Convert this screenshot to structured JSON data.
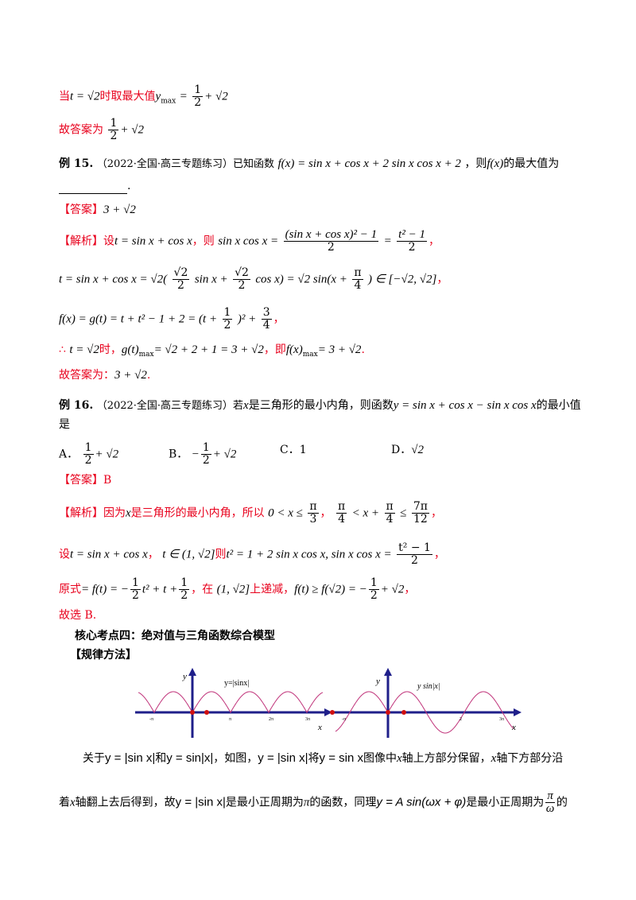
{
  "lines": {
    "l1_prefix": "当",
    "l1_t": "t = √2",
    "l1_mid": "时取最大值",
    "l1_expr": "y",
    "l1_sub": "max",
    "l1_eq": "=",
    "l1_num": "1",
    "l1_den": "2",
    "l1_rest": "+ √2",
    "l2_text": "故答案为",
    "l2_num": "1",
    "l2_den": "2",
    "l2_rest": "+ √2",
    "ex15_label": "例 15.",
    "ex15_source": "（2022·全国·高三专题练习）已知函数",
    "ex15_func": "f(x) = sin x + cos x + 2 sin x cos x + 2",
    "ex15_tail": "，则",
    "ex15_fx": "f(x)",
    "ex15_tail2": "的最大值为",
    "ex15_end": ".",
    "ans15_label": "【答案】",
    "ans15_value": "3 + √2",
    "sol15_label": "【解析】设",
    "sol15_t": "t = sin x + cos x",
    "sol15_then": "，则",
    "sol15_lhs": "sin x cos x =",
    "sol15_num1": "(sin x + cos x)² − 1",
    "sol15_den1": "2",
    "sol15_eq": "=",
    "sol15_num2": "t² − 1",
    "sol15_den2": "2",
    "sol15_comma": "，",
    "sol15_line2": "t = sin x + cos x = √2(",
    "sol15_l2_n1": "√2",
    "sol15_l2_d1": "2",
    "sol15_l2_m1": "sin x +",
    "sol15_l2_n2": "√2",
    "sol15_l2_d2": "2",
    "sol15_l2_m2": "cos x) = √2 sin(x +",
    "sol15_l2_n3": "π",
    "sol15_l2_d3": "4",
    "sol15_l2_end": ") ∈ [−√2, √2]",
    "sol15_line3a": "f(x) = g(t) = t + t² − 1 + 2 = (t +",
    "sol15_l3_n1": "1",
    "sol15_l3_d1": "2",
    "sol15_l3_m": ")² +",
    "sol15_l3_n2": "3",
    "sol15_l3_d2": "4",
    "sol15_l3_end": "，",
    "sol15_line4a": "∴",
    "sol15_line4b": "t = √2",
    "sol15_line4c": "时，",
    "sol15_line4d": "g(t)",
    "sol15_line4sub": "max",
    "sol15_line4e": "= √2 + 2 + 1 = 3 + √2",
    "sol15_line4f": "，即",
    "sol15_line4g": "f(x)",
    "sol15_line4sub2": "max",
    "sol15_line4h": "= 3 + √2",
    "sol15_line4i": ".",
    "sol15_final": "故答案为：",
    "sol15_final_val": "3 + √2",
    "sol15_final_end": ".",
    "ex16_label": "例 16.",
    "ex16_source": "（2022·全国·高三专题练习）若",
    "ex16_x": "x",
    "ex16_mid": "是三角形的最小内角，则函数",
    "ex16_func": "y = sin x + cos x − sin x cos x",
    "ex16_tail": "的最小值",
    "ex16_line2": "是",
    "optA_label": "A．",
    "optA_num": "1",
    "optA_den": "2",
    "optA_rest": "+ √2",
    "optB_label": "B．",
    "optB_pre": "−",
    "optB_num": "1",
    "optB_den": "2",
    "optB_rest": "+ √2",
    "optC_label": "C．",
    "optC_val": "1",
    "optD_label": "D．",
    "optD_val": "√2",
    "ans16_label": "【答案】",
    "ans16_value": "B",
    "sol16_label": "【解析】因为",
    "sol16_x": "x",
    "sol16_mid": "是三角形的最小内角，所以",
    "sol16_ineq1a": "0 < x ≤",
    "sol16_i1_num": "π",
    "sol16_i1_den": "3",
    "sol16_sep": "，",
    "sol16_i2_n1": "π",
    "sol16_i2_d1": "4",
    "sol16_i2_m": "< x +",
    "sol16_i2_n2": "π",
    "sol16_i2_d2": "4",
    "sol16_i2_le": "≤",
    "sol16_i2_n3": "7π",
    "sol16_i2_d3": "12",
    "sol16_i2_end": "，",
    "sol16_l2_pre": "设",
    "sol16_l2_t": "t = sin x + cos x",
    "sol16_l2_c": "，",
    "sol16_l2_in": "t ∈ (1, √2]",
    "sol16_l2_then": "则",
    "sol16_l2_eq": "t² = 1 + 2 sin x cos x, sin x cos x =",
    "sol16_l2_num": "t² − 1",
    "sol16_l2_den": "2",
    "sol16_l2_end": "，",
    "sol16_l3_pre": "原式",
    "sol16_l3_a": "= f(t) = −",
    "sol16_l3_n1": "1",
    "sol16_l3_d1": "2",
    "sol16_l3_b": "t² + t +",
    "sol16_l3_n2": "1",
    "sol16_l3_d2": "2",
    "sol16_l3_c": "，在",
    "sol16_l3_int": "(1, √2]",
    "sol16_l3_d": "上递减，",
    "sol16_l3_e": "f(t) ≥ f(√2) = −",
    "sol16_l3_n3": "1",
    "sol16_l3_d3": "2",
    "sol16_l3_f": "+ √2",
    "sol16_l3_g": "，",
    "sol16_final": "故选 B.",
    "section_title": "核心考点四：绝对值与三角函数综合模型",
    "method_label": "【规律方法】",
    "p1_a": "关于",
    "p1_b": "y = |sin x|",
    "p1_c": "和",
    "p1_d": "y = sin|x|",
    "p1_e": "，如图，",
    "p1_f": "y = |sin x|",
    "p1_g": "将",
    "p1_h": "y = sin x",
    "p1_i": "图像中",
    "p1_j": "x",
    "p1_k": "轴上方部分保留，",
    "p1_l": "x",
    "p1_m": "轴下方部分沿",
    "p2_a": "着",
    "p2_b": "x",
    "p2_c": "轴翻上去后得到，故",
    "p2_d": "y = |sin x|",
    "p2_e": "是最小正周期为",
    "p2_f": "π",
    "p2_g": "的函数，同理",
    "p2_h": "y = A sin(ωx + φ)",
    "p2_i": "是最小正周期为",
    "p2_num": "π",
    "p2_den": "ω",
    "p2_j": "的"
  },
  "graph": {
    "left_ylabel": "y",
    "left_title": "y=|sinx|",
    "left_xlabel": "x",
    "left_ticks": [
      "-π",
      "π",
      "2π",
      "3π"
    ],
    "right_ylabel": "y",
    "right_title": "y  sin|x|",
    "right_xlabel": "x",
    "right_ticks": [
      "-π",
      "2",
      "3π"
    ],
    "axis_color": "#1f1f8a",
    "curve_color": "#c0337a",
    "dot_color": "#d01010"
  }
}
